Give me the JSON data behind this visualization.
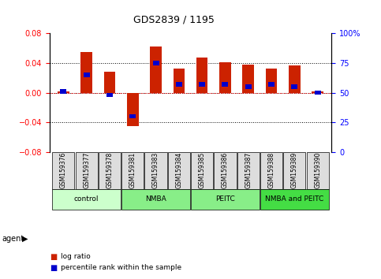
{
  "title": "GDS2839 / 1195",
  "samples": [
    "GSM159376",
    "GSM159377",
    "GSM159378",
    "GSM159381",
    "GSM159383",
    "GSM159384",
    "GSM159385",
    "GSM159386",
    "GSM159387",
    "GSM159388",
    "GSM159389",
    "GSM159390"
  ],
  "log_ratio": [
    0.002,
    0.055,
    0.028,
    -0.045,
    0.062,
    0.033,
    0.048,
    0.041,
    0.038,
    0.033,
    0.037,
    0.002
  ],
  "percentile_rank_value": [
    51,
    65,
    48,
    30,
    75,
    57,
    57,
    57,
    55,
    57,
    55,
    50
  ],
  "groups": [
    {
      "label": "control",
      "color": "#ccffcc",
      "start": 0,
      "end": 3
    },
    {
      "label": "NMBA",
      "color": "#88ee88",
      "start": 3,
      "end": 6
    },
    {
      "label": "PEITC",
      "color": "#88ee88",
      "start": 6,
      "end": 9
    },
    {
      "label": "NMBA and PEITC",
      "color": "#44cc44",
      "start": 9,
      "end": 12
    }
  ],
  "ylim_left": [
    -0.08,
    0.08
  ],
  "ylim_right": [
    0,
    100
  ],
  "yticks_left": [
    -0.08,
    -0.04,
    0.0,
    0.04,
    0.08
  ],
  "yticks_right": [
    0,
    25,
    50,
    75,
    100
  ],
  "bar_color": "#cc2200",
  "percentile_color": "#0000cc",
  "bar_width": 0.5,
  "agent_label": "agent",
  "legend_items": [
    {
      "label": "log ratio",
      "color": "#cc2200"
    },
    {
      "label": "percentile rank within the sample",
      "color": "#0000cc"
    }
  ]
}
